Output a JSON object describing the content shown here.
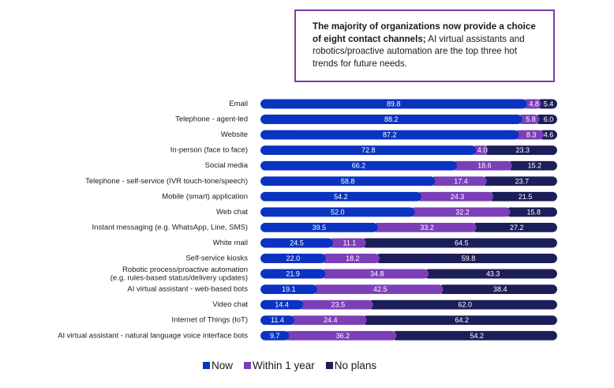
{
  "callout": {
    "bold": "The majority of organizations now provide a choice of eight contact channels;",
    "rest": " AI virtual assistants and robotics/proactive automation are the top three hot trends for future needs."
  },
  "colors": {
    "now": "#0a33c2",
    "within": "#7b3fb8",
    "noplans": "#1b1e58"
  },
  "chart_data": {
    "type": "bar",
    "orientation": "horizontal",
    "stacked": true,
    "xlim": [
      0,
      100
    ],
    "legend_position": "bottom",
    "categories": [
      "Email",
      "Telephone - agent-led",
      "Website",
      "In-person (face to face)",
      "Social media",
      "Telephone - self-service (IVR touch-tone/speech)",
      "Mobile (smart) application",
      "Web chat",
      "Instant messaging (e.g. WhatsApp, Line, SMS)",
      "White mail",
      "Self-service kiosks",
      [
        "Robotic process/proactive automation",
        "(e.g. rules-based status/delivery updates)"
      ],
      "AI virtual assistant - web-based bots",
      "Video chat",
      "Internet of Things (IoT)",
      "AI virtual assistant - natural language voice interface bots"
    ],
    "series": [
      {
        "name": "Now",
        "values": [
          89.8,
          88.2,
          87.2,
          72.8,
          66.2,
          58.8,
          54.2,
          52.0,
          39.5,
          24.5,
          22.0,
          21.9,
          19.1,
          14.4,
          11.4,
          9.7
        ]
      },
      {
        "name": "Within 1 year",
        "values": [
          4.8,
          5.8,
          8.3,
          4.0,
          18.6,
          17.4,
          24.3,
          32.2,
          33.2,
          11.1,
          18.2,
          34.8,
          42.5,
          23.5,
          24.4,
          36.2
        ]
      },
      {
        "name": "No plans",
        "values": [
          5.4,
          6.0,
          4.6,
          23.3,
          15.2,
          23.7,
          21.5,
          15.8,
          27.2,
          64.5,
          59.8,
          43.3,
          38.4,
          62.0,
          64.2,
          54.2
        ]
      }
    ],
    "labels": [
      [
        "89.8",
        "4.8",
        "5.4"
      ],
      [
        "88.2",
        "5.8",
        "6.0"
      ],
      [
        "87.2",
        "8.3",
        "4.6"
      ],
      [
        "72.8",
        "4.0",
        "23.3"
      ],
      [
        "66.2",
        "18.6",
        "15.2"
      ],
      [
        "58.8",
        "17.4",
        "23.7"
      ],
      [
        "54.2",
        "24.3",
        "21.5"
      ],
      [
        "52.0",
        "32.2",
        "15.8"
      ],
      [
        "39.5",
        "33.2",
        "27.2"
      ],
      [
        "24.5",
        "11.1",
        "64.5"
      ],
      [
        "22.0",
        "18.2",
        "59.8"
      ],
      [
        "21.9",
        "34.8",
        "43.3"
      ],
      [
        "19.1",
        "42.5",
        "38.4"
      ],
      [
        "14.4",
        "23.5",
        "62.0"
      ],
      [
        "11.4",
        "24.4",
        "64.2"
      ],
      [
        "9.7",
        "36.2",
        "54.2"
      ]
    ]
  }
}
